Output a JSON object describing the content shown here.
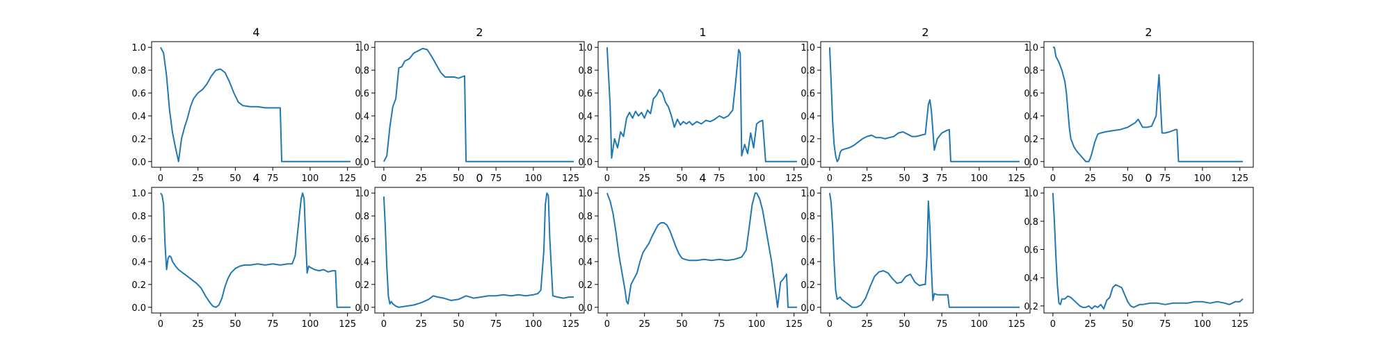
{
  "figure": {
    "background": "#ffffff",
    "line_color": "#1f77b4"
  },
  "chart_data": [
    {
      "type": "line",
      "title": "4",
      "xlim": [
        -6,
        134
      ],
      "ylim": [
        -0.05,
        1.05
      ],
      "xticks": [
        0,
        25,
        50,
        75,
        100,
        125
      ],
      "yticks": [
        0.0,
        0.2,
        0.4,
        0.6,
        0.8,
        1.0
      ],
      "x": [
        0,
        2,
        4,
        6,
        8,
        10,
        12,
        14,
        16,
        18,
        20,
        22,
        25,
        28,
        31,
        34,
        37,
        40,
        43,
        46,
        49,
        52,
        55,
        60,
        65,
        70,
        75,
        78,
        80,
        81,
        85,
        95,
        105,
        115,
        127
      ],
      "y": [
        1.0,
        0.95,
        0.75,
        0.45,
        0.25,
        0.12,
        0.0,
        0.2,
        0.3,
        0.38,
        0.48,
        0.55,
        0.6,
        0.63,
        0.68,
        0.75,
        0.8,
        0.81,
        0.78,
        0.7,
        0.6,
        0.52,
        0.49,
        0.48,
        0.48,
        0.47,
        0.47,
        0.47,
        0.47,
        0.0,
        0.0,
        0.0,
        0.0,
        0.0,
        0.0
      ]
    },
    {
      "type": "line",
      "title": "2",
      "xlim": [
        -6,
        134
      ],
      "ylim": [
        -0.05,
        1.05
      ],
      "xticks": [
        0,
        25,
        50,
        75,
        100,
        125
      ],
      "yticks": [
        0.0,
        0.2,
        0.4,
        0.6,
        0.8,
        1.0
      ],
      "x": [
        0,
        2,
        4,
        6,
        8,
        10,
        12,
        14,
        17,
        20,
        23,
        26,
        29,
        32,
        35,
        38,
        41,
        44,
        47,
        50,
        52,
        54,
        55,
        60,
        80,
        100,
        127
      ],
      "y": [
        0.0,
        0.05,
        0.3,
        0.48,
        0.55,
        0.82,
        0.83,
        0.88,
        0.9,
        0.95,
        0.97,
        0.99,
        0.98,
        0.92,
        0.85,
        0.78,
        0.74,
        0.74,
        0.74,
        0.73,
        0.74,
        0.75,
        0.0,
        0.0,
        0.0,
        0.0,
        0.0
      ]
    },
    {
      "type": "line",
      "title": "1",
      "xlim": [
        -6,
        134
      ],
      "ylim": [
        -0.05,
        1.05
      ],
      "xticks": [
        0,
        25,
        50,
        75,
        100,
        125
      ],
      "yticks": [
        0.0,
        0.2,
        0.4,
        0.6,
        0.8,
        1.0
      ],
      "x": [
        0,
        2,
        3,
        5,
        7,
        9,
        11,
        13,
        15,
        17,
        19,
        21,
        23,
        25,
        27,
        29,
        31,
        33,
        35,
        37,
        39,
        41,
        43,
        45,
        47,
        49,
        51,
        53,
        55,
        57,
        60,
        63,
        66,
        69,
        72,
        75,
        78,
        81,
        84,
        86,
        88,
        89,
        90,
        92,
        94,
        96,
        98,
        100,
        102,
        104,
        106,
        110,
        120,
        127
      ],
      "y": [
        1.0,
        0.5,
        0.03,
        0.2,
        0.12,
        0.26,
        0.22,
        0.38,
        0.43,
        0.38,
        0.44,
        0.4,
        0.43,
        0.38,
        0.45,
        0.42,
        0.55,
        0.58,
        0.63,
        0.6,
        0.52,
        0.48,
        0.4,
        0.3,
        0.37,
        0.32,
        0.35,
        0.33,
        0.35,
        0.32,
        0.35,
        0.33,
        0.36,
        0.35,
        0.37,
        0.4,
        0.38,
        0.4,
        0.45,
        0.7,
        0.98,
        0.95,
        0.05,
        0.15,
        0.07,
        0.25,
        0.12,
        0.33,
        0.35,
        0.36,
        0.0,
        0.0,
        0.0,
        0.0
      ]
    },
    {
      "type": "line",
      "title": "2",
      "xlim": [
        -6,
        134
      ],
      "ylim": [
        -0.05,
        1.05
      ],
      "xticks": [
        0,
        25,
        50,
        75,
        100,
        125
      ],
      "yticks": [
        0.0,
        0.2,
        0.4,
        0.6,
        0.8,
        1.0
      ],
      "x": [
        0,
        1,
        2,
        3,
        4,
        5,
        6,
        7,
        8,
        10,
        13,
        16,
        19,
        22,
        25,
        28,
        31,
        34,
        37,
        40,
        43,
        46,
        49,
        52,
        55,
        58,
        61,
        64,
        66,
        67,
        68,
        70,
        72,
        75,
        78,
        80,
        81,
        90,
        100,
        115,
        127
      ],
      "y": [
        1.0,
        0.7,
        0.35,
        0.15,
        0.05,
        0.0,
        0.02,
        0.08,
        0.1,
        0.11,
        0.12,
        0.14,
        0.17,
        0.2,
        0.22,
        0.23,
        0.21,
        0.21,
        0.2,
        0.21,
        0.22,
        0.25,
        0.26,
        0.24,
        0.22,
        0.22,
        0.23,
        0.24,
        0.5,
        0.54,
        0.45,
        0.1,
        0.2,
        0.25,
        0.27,
        0.28,
        0.0,
        0.0,
        0.0,
        0.0,
        0.0
      ]
    },
    {
      "type": "line",
      "title": "2",
      "xlim": [
        -6,
        134
      ],
      "ylim": [
        -0.05,
        1.05
      ],
      "xticks": [
        0,
        25,
        50,
        75,
        100,
        125
      ],
      "yticks": [
        0.0,
        0.2,
        0.4,
        0.6,
        0.8,
        1.0
      ],
      "x": [
        0,
        1,
        2,
        4,
        6,
        8,
        9,
        10,
        11,
        12,
        14,
        16,
        18,
        20,
        22,
        24,
        25,
        26,
        28,
        30,
        32,
        35,
        40,
        45,
        50,
        55,
        57,
        60,
        63,
        66,
        69,
        70,
        71,
        72,
        73,
        75,
        78,
        82,
        83,
        84,
        90,
        100,
        115,
        127
      ],
      "y": [
        1.0,
        1.0,
        0.92,
        0.87,
        0.8,
        0.7,
        0.6,
        0.45,
        0.3,
        0.2,
        0.13,
        0.09,
        0.06,
        0.03,
        0.0,
        0.0,
        0.03,
        0.07,
        0.17,
        0.24,
        0.25,
        0.26,
        0.27,
        0.28,
        0.3,
        0.34,
        0.37,
        0.3,
        0.3,
        0.31,
        0.4,
        0.6,
        0.76,
        0.5,
        0.25,
        0.25,
        0.26,
        0.28,
        0.28,
        0.0,
        0.0,
        0.0,
        0.0,
        0.0
      ]
    },
    {
      "type": "line",
      "title": "4",
      "xlim": [
        -6,
        134
      ],
      "ylim": [
        -0.05,
        1.05
      ],
      "xticks": [
        0,
        25,
        50,
        75,
        100,
        125
      ],
      "yticks": [
        0.0,
        0.2,
        0.4,
        0.6,
        0.8,
        1.0
      ],
      "x": [
        0,
        1,
        2,
        3,
        4,
        5,
        6,
        7,
        8,
        10,
        12,
        15,
        18,
        21,
        24,
        27,
        30,
        33,
        35,
        37,
        39,
        41,
        43,
        45,
        47,
        50,
        53,
        56,
        60,
        65,
        70,
        75,
        80,
        85,
        88,
        90,
        92,
        94,
        95,
        96,
        97,
        98,
        99,
        100,
        103,
        106,
        109,
        112,
        115,
        117,
        118,
        120,
        125,
        127
      ],
      "y": [
        1.0,
        0.98,
        0.9,
        0.55,
        0.33,
        0.43,
        0.45,
        0.44,
        0.4,
        0.36,
        0.33,
        0.3,
        0.27,
        0.24,
        0.21,
        0.17,
        0.1,
        0.04,
        0.01,
        0.0,
        0.02,
        0.08,
        0.18,
        0.25,
        0.3,
        0.34,
        0.36,
        0.37,
        0.37,
        0.38,
        0.37,
        0.38,
        0.37,
        0.38,
        0.38,
        0.45,
        0.7,
        0.95,
        1.0,
        0.95,
        0.6,
        0.3,
        0.36,
        0.35,
        0.33,
        0.32,
        0.33,
        0.31,
        0.32,
        0.32,
        0.0,
        0.0,
        0.0,
        0.0
      ]
    },
    {
      "type": "line",
      "title": "0",
      "xlim": [
        -6,
        134
      ],
      "ylim": [
        -0.05,
        1.05
      ],
      "xticks": [
        0,
        25,
        50,
        75,
        100,
        125
      ],
      "yticks": [
        0.0,
        0.2,
        0.4,
        0.6,
        0.8,
        1.0
      ],
      "x": [
        0,
        1,
        2,
        3,
        4,
        5,
        6,
        8,
        10,
        15,
        20,
        25,
        30,
        33,
        36,
        40,
        45,
        50,
        55,
        60,
        65,
        70,
        75,
        80,
        85,
        90,
        95,
        100,
        103,
        105,
        107,
        108,
        109,
        110,
        111,
        113,
        116,
        120,
        124,
        127
      ],
      "y": [
        0.97,
        0.7,
        0.35,
        0.1,
        0.03,
        0.05,
        0.03,
        0.01,
        0.0,
        0.01,
        0.02,
        0.04,
        0.07,
        0.1,
        0.09,
        0.08,
        0.06,
        0.07,
        0.1,
        0.08,
        0.09,
        0.1,
        0.1,
        0.11,
        0.1,
        0.11,
        0.1,
        0.11,
        0.12,
        0.15,
        0.5,
        0.9,
        1.0,
        0.98,
        0.6,
        0.1,
        0.09,
        0.08,
        0.09,
        0.09
      ]
    },
    {
      "type": "line",
      "title": "4",
      "xlim": [
        -6,
        134
      ],
      "ylim": [
        -0.05,
        1.05
      ],
      "xticks": [
        0,
        25,
        50,
        75,
        100,
        125
      ],
      "yticks": [
        0.0,
        0.2,
        0.4,
        0.6,
        0.8,
        1.0
      ],
      "x": [
        0,
        2,
        4,
        6,
        8,
        10,
        12,
        13,
        14,
        16,
        18,
        20,
        22,
        24,
        26,
        28,
        30,
        32,
        34,
        36,
        38,
        40,
        42,
        44,
        46,
        48,
        50,
        52,
        55,
        60,
        65,
        70,
        75,
        80,
        85,
        90,
        93,
        95,
        97,
        99,
        100,
        102,
        104,
        106,
        108,
        110,
        112,
        114,
        116,
        118,
        120,
        121,
        122,
        125,
        127
      ],
      "y": [
        1.0,
        0.93,
        0.82,
        0.65,
        0.45,
        0.3,
        0.15,
        0.05,
        0.03,
        0.2,
        0.25,
        0.3,
        0.4,
        0.48,
        0.52,
        0.56,
        0.62,
        0.67,
        0.72,
        0.74,
        0.74,
        0.72,
        0.67,
        0.6,
        0.53,
        0.47,
        0.43,
        0.42,
        0.41,
        0.41,
        0.42,
        0.41,
        0.42,
        0.41,
        0.42,
        0.44,
        0.5,
        0.7,
        0.9,
        1.0,
        1.0,
        0.95,
        0.85,
        0.7,
        0.55,
        0.4,
        0.2,
        0.0,
        0.22,
        0.25,
        0.29,
        0.0,
        0.0,
        0.0,
        0.0
      ]
    },
    {
      "type": "line",
      "title": "3",
      "xlim": [
        -6,
        134
      ],
      "ylim": [
        -0.05,
        1.05
      ],
      "xticks": [
        0,
        25,
        50,
        75,
        100,
        125
      ],
      "yticks": [
        0.0,
        0.2,
        0.4,
        0.6,
        0.8,
        1.0
      ],
      "x": [
        0,
        1,
        2,
        3,
        4,
        5,
        6,
        7,
        8,
        10,
        12,
        15,
        18,
        21,
        24,
        27,
        30,
        33,
        36,
        39,
        42,
        45,
        48,
        51,
        54,
        57,
        60,
        63,
        64,
        65,
        66,
        67,
        68,
        69,
        70,
        72,
        75,
        78,
        79,
        80,
        90,
        100,
        115,
        127
      ],
      "y": [
        1.0,
        0.92,
        0.7,
        0.4,
        0.15,
        0.07,
        0.08,
        0.09,
        0.07,
        0.05,
        0.03,
        0.0,
        0.0,
        0.02,
        0.08,
        0.18,
        0.27,
        0.31,
        0.32,
        0.3,
        0.25,
        0.21,
        0.22,
        0.27,
        0.29,
        0.22,
        0.19,
        0.2,
        0.2,
        0.45,
        0.93,
        0.7,
        0.35,
        0.06,
        0.12,
        0.11,
        0.11,
        0.11,
        0.11,
        0.0,
        0.0,
        0.0,
        0.0,
        0.0
      ]
    },
    {
      "type": "line",
      "title": "0",
      "xlim": [
        -6,
        134
      ],
      "ylim": [
        0.15,
        1.04
      ],
      "xticks": [
        0,
        25,
        50,
        75,
        100,
        125
      ],
      "yticks": [
        0.2,
        0.4,
        0.6,
        0.8,
        1.0
      ],
      "x": [
        0,
        1,
        2,
        3,
        4,
        5,
        6,
        8,
        10,
        12,
        14,
        16,
        18,
        20,
        22,
        24,
        26,
        28,
        30,
        32,
        34,
        36,
        38,
        40,
        42,
        44,
        46,
        48,
        50,
        52,
        54,
        56,
        58,
        60,
        65,
        70,
        75,
        80,
        85,
        90,
        95,
        100,
        105,
        110,
        115,
        118,
        120,
        122,
        125,
        127
      ],
      "y": [
        1.0,
        0.8,
        0.55,
        0.35,
        0.22,
        0.21,
        0.25,
        0.25,
        0.27,
        0.26,
        0.24,
        0.22,
        0.2,
        0.19,
        0.19,
        0.2,
        0.18,
        0.2,
        0.19,
        0.21,
        0.18,
        0.24,
        0.26,
        0.33,
        0.35,
        0.34,
        0.33,
        0.28,
        0.23,
        0.2,
        0.19,
        0.2,
        0.21,
        0.21,
        0.22,
        0.22,
        0.21,
        0.22,
        0.22,
        0.22,
        0.23,
        0.23,
        0.22,
        0.23,
        0.22,
        0.21,
        0.22,
        0.23,
        0.23,
        0.25
      ]
    }
  ]
}
